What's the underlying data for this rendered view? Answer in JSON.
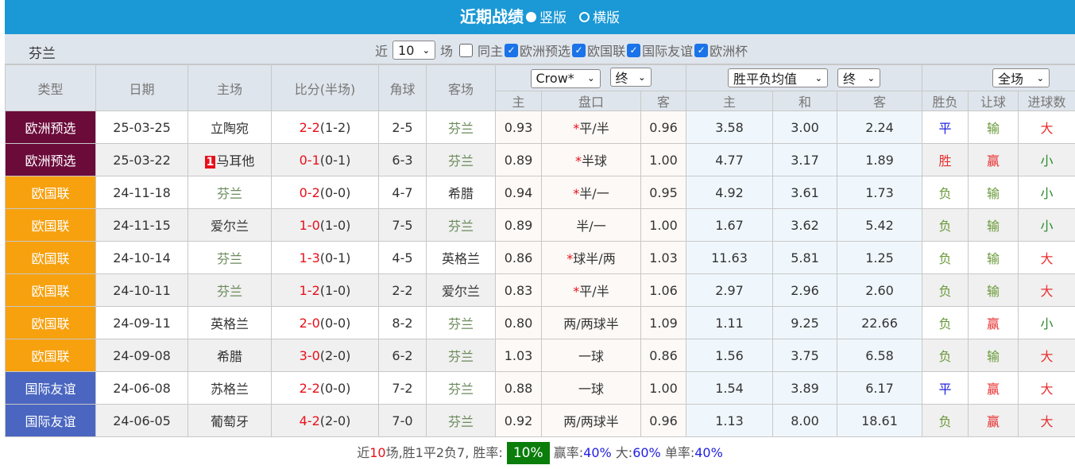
{
  "header": {
    "title": "近期战绩",
    "view_options": [
      {
        "label": "竖版",
        "selected": true
      },
      {
        "label": "横版",
        "selected": false
      }
    ]
  },
  "filter": {
    "team": "芬兰",
    "recent_prefix": "近",
    "recent_count": "10",
    "recent_suffix": "场",
    "same_home": {
      "label": "同主",
      "checked": false
    },
    "competitions": [
      {
        "label": "欧洲预选",
        "checked": true
      },
      {
        "label": "欧国联",
        "checked": true
      },
      {
        "label": "国际友谊",
        "checked": true
      },
      {
        "label": "欧洲杯",
        "checked": true
      }
    ]
  },
  "columns": {
    "type": "类型",
    "date": "日期",
    "home": "主场",
    "score": "比分(半场)",
    "corner": "角球",
    "away": "客场",
    "asian_company": "Crow*",
    "asian_mode": "终",
    "asian_sub": [
      "主",
      "盘口",
      "客"
    ],
    "euro_type": "胜平负均值",
    "euro_mode": "终",
    "euro_sub": [
      "主",
      "和",
      "客"
    ],
    "result_scope": "全场",
    "result_sub": [
      "胜负",
      "让球",
      "进球数"
    ]
  },
  "colors": {
    "欧洲预选": "#6b0b3a",
    "欧国联": "#f7a10f",
    "国际友谊": "#4a66c0",
    "title_bar": "#1b98d6"
  },
  "rows": [
    {
      "type": "欧洲预选",
      "cls": "lg1",
      "date": "25-03-25",
      "home": "立陶宛",
      "home_rank": "",
      "home_hl": false,
      "score": "2-2",
      "half": "(1-2)",
      "corner": "2-5",
      "away": "芬兰",
      "away_hl": true,
      "a_home": "0.93",
      "a_star": "*",
      "a_line": "平/半",
      "a_away": "0.96",
      "e_home": "3.58",
      "e_draw": "3.00",
      "e_away": "2.24",
      "wdl": "平",
      "ah": "输",
      "ou": "大"
    },
    {
      "type": "欧洲预选",
      "cls": "lg1",
      "date": "25-03-22",
      "home": "马耳他",
      "home_rank": "1",
      "home_hl": false,
      "score": "0-1",
      "half": "(0-1)",
      "corner": "6-3",
      "away": "芬兰",
      "away_hl": true,
      "a_home": "0.89",
      "a_star": "*",
      "a_line": "半球",
      "a_away": "1.00",
      "e_home": "4.77",
      "e_draw": "3.17",
      "e_away": "1.89",
      "wdl": "胜",
      "ah": "赢",
      "ou": "小"
    },
    {
      "type": "欧国联",
      "cls": "lg2",
      "date": "24-11-18",
      "home": "芬兰",
      "home_rank": "",
      "home_hl": true,
      "score": "0-2",
      "half": "(0-0)",
      "corner": "4-7",
      "away": "希腊",
      "away_hl": false,
      "a_home": "0.94",
      "a_star": "*",
      "a_line": "半/一",
      "a_away": "0.95",
      "e_home": "4.92",
      "e_draw": "3.61",
      "e_away": "1.73",
      "wdl": "负",
      "ah": "输",
      "ou": "小"
    },
    {
      "type": "欧国联",
      "cls": "lg2",
      "date": "24-11-15",
      "home": "爱尔兰",
      "home_rank": "",
      "home_hl": false,
      "score": "1-0",
      "half": "(1-0)",
      "corner": "7-5",
      "away": "芬兰",
      "away_hl": true,
      "a_home": "0.89",
      "a_star": "",
      "a_line": "半/一",
      "a_away": "1.00",
      "e_home": "1.67",
      "e_draw": "3.62",
      "e_away": "5.42",
      "wdl": "负",
      "ah": "输",
      "ou": "小"
    },
    {
      "type": "欧国联",
      "cls": "lg2",
      "date": "24-10-14",
      "home": "芬兰",
      "home_rank": "",
      "home_hl": true,
      "score": "1-3",
      "half": "(0-1)",
      "corner": "4-5",
      "away": "英格兰",
      "away_hl": false,
      "a_home": "0.86",
      "a_star": "*",
      "a_line": "球半/两",
      "a_away": "1.03",
      "e_home": "11.63",
      "e_draw": "5.81",
      "e_away": "1.25",
      "wdl": "负",
      "ah": "输",
      "ou": "大"
    },
    {
      "type": "欧国联",
      "cls": "lg2",
      "date": "24-10-11",
      "home": "芬兰",
      "home_rank": "",
      "home_hl": true,
      "score": "1-2",
      "half": "(1-0)",
      "corner": "2-2",
      "away": "爱尔兰",
      "away_hl": false,
      "a_home": "0.83",
      "a_star": "*",
      "a_line": "平/半",
      "a_away": "1.06",
      "e_home": "2.97",
      "e_draw": "2.96",
      "e_away": "2.60",
      "wdl": "负",
      "ah": "输",
      "ou": "大"
    },
    {
      "type": "欧国联",
      "cls": "lg2",
      "date": "24-09-11",
      "home": "英格兰",
      "home_rank": "",
      "home_hl": false,
      "score": "2-0",
      "half": "(0-0)",
      "corner": "8-2",
      "away": "芬兰",
      "away_hl": true,
      "a_home": "0.80",
      "a_star": "",
      "a_line": "两/两球半",
      "a_away": "1.09",
      "e_home": "1.11",
      "e_draw": "9.25",
      "e_away": "22.66",
      "wdl": "负",
      "ah": "赢",
      "ou": "小"
    },
    {
      "type": "欧国联",
      "cls": "lg2",
      "date": "24-09-08",
      "home": "希腊",
      "home_rank": "",
      "home_hl": false,
      "score": "3-0",
      "half": "(2-0)",
      "corner": "6-2",
      "away": "芬兰",
      "away_hl": true,
      "a_home": "1.03",
      "a_star": "",
      "a_line": "一球",
      "a_away": "0.86",
      "e_home": "1.56",
      "e_draw": "3.75",
      "e_away": "6.58",
      "wdl": "负",
      "ah": "输",
      "ou": "大"
    },
    {
      "type": "国际友谊",
      "cls": "lg3",
      "date": "24-06-08",
      "home": "苏格兰",
      "home_rank": "",
      "home_hl": false,
      "score": "2-2",
      "half": "(0-0)",
      "corner": "7-2",
      "away": "芬兰",
      "away_hl": true,
      "a_home": "0.88",
      "a_star": "",
      "a_line": "一球",
      "a_away": "1.00",
      "e_home": "1.54",
      "e_draw": "3.89",
      "e_away": "6.17",
      "wdl": "平",
      "ah": "赢",
      "ou": "大"
    },
    {
      "type": "国际友谊",
      "cls": "lg3",
      "date": "24-06-05",
      "home": "葡萄牙",
      "home_rank": "",
      "home_hl": false,
      "score": "4-2",
      "half": "(2-0)",
      "corner": "7-0",
      "away": "芬兰",
      "away_hl": true,
      "a_home": "0.92",
      "a_star": "",
      "a_line": "两/两球半",
      "a_away": "0.96",
      "e_home": "1.13",
      "e_draw": "8.00",
      "e_away": "18.61",
      "wdl": "负",
      "ah": "赢",
      "ou": "大"
    }
  ],
  "summary": {
    "p1": "近",
    "count": "10",
    "p2": "场,胜1平2负7, 胜率:",
    "win_rate": "10%",
    "p3": " 赢率:",
    "ah_rate": "40%",
    "p4": " 大:",
    "over_rate": "60%",
    "p5": " 单率:",
    "odd_rate": "40%"
  }
}
